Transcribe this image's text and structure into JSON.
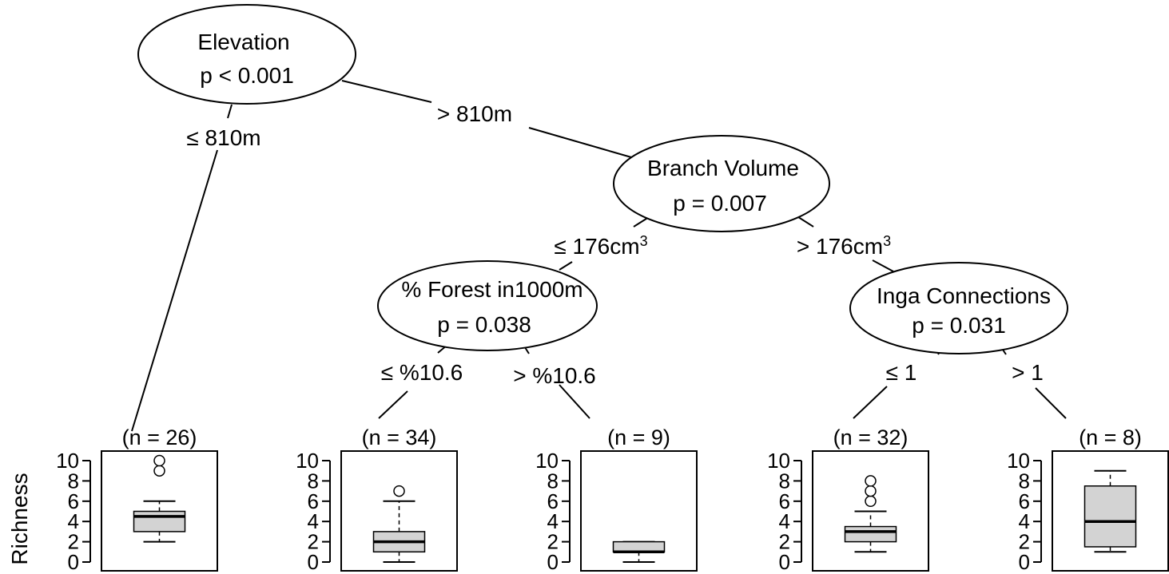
{
  "tree": {
    "nodes": [
      {
        "id": "elevation",
        "title": "Elevation",
        "pvalue": "p < 0.001"
      },
      {
        "id": "branch",
        "title": "Branch Volume",
        "pvalue": "p = 0.007"
      },
      {
        "id": "forest",
        "title": "% Forest in1000m",
        "pvalue": "p = 0.038"
      },
      {
        "id": "inga",
        "title": "Inga Connections",
        "pvalue": "p = 0.031"
      }
    ],
    "edges": [
      {
        "id": "e-elev-left",
        "label": "≤ 810m",
        "sup": ""
      },
      {
        "id": "e-elev-right",
        "label": "> 810m",
        "sup": ""
      },
      {
        "id": "e-branch-left",
        "label": "≤ 176cm",
        "sup": "3"
      },
      {
        "id": "e-branch-right",
        "label": "> 176cm",
        "sup": "3"
      },
      {
        "id": "e-forest-left",
        "label": "≤ %10.6",
        "sup": ""
      },
      {
        "id": "e-forest-right",
        "label": "> %10.6",
        "sup": ""
      },
      {
        "id": "e-inga-left",
        "label": "≤  1",
        "sup": ""
      },
      {
        "id": "e-inga-right",
        "label": "> 1",
        "sup": ""
      }
    ]
  },
  "chart_data": {
    "type": "boxplot",
    "ylabel": "Richness",
    "ylim": [
      0,
      10
    ],
    "yticks": [
      0,
      2,
      4,
      6,
      8,
      10
    ],
    "box_fill": "#d3d3d3",
    "leaves": [
      {
        "id": "leaf1",
        "n_label": "(n = 26)",
        "whisker_low": 2,
        "q1": 3,
        "median": 4.5,
        "q3": 5,
        "whisker_high": 6,
        "outliers": [
          9,
          10
        ]
      },
      {
        "id": "leaf2",
        "n_label": "(n = 34)",
        "whisker_low": 0,
        "q1": 1,
        "median": 2,
        "q3": 3,
        "whisker_high": 6,
        "outliers": [
          7
        ]
      },
      {
        "id": "leaf3",
        "n_label": "(n = 9)",
        "whisker_low": 0,
        "q1": 1,
        "median": 1,
        "q3": 2,
        "whisker_high": 2,
        "outliers": []
      },
      {
        "id": "leaf4",
        "n_label": "(n = 32)",
        "whisker_low": 1,
        "q1": 2,
        "median": 3,
        "q3": 3.5,
        "whisker_high": 5,
        "outliers": [
          6,
          7,
          8
        ]
      },
      {
        "id": "leaf5",
        "n_label": "(n = 8)",
        "whisker_low": 1,
        "q1": 1.5,
        "median": 4,
        "q3": 7.5,
        "whisker_high": 9,
        "outliers": []
      }
    ]
  }
}
